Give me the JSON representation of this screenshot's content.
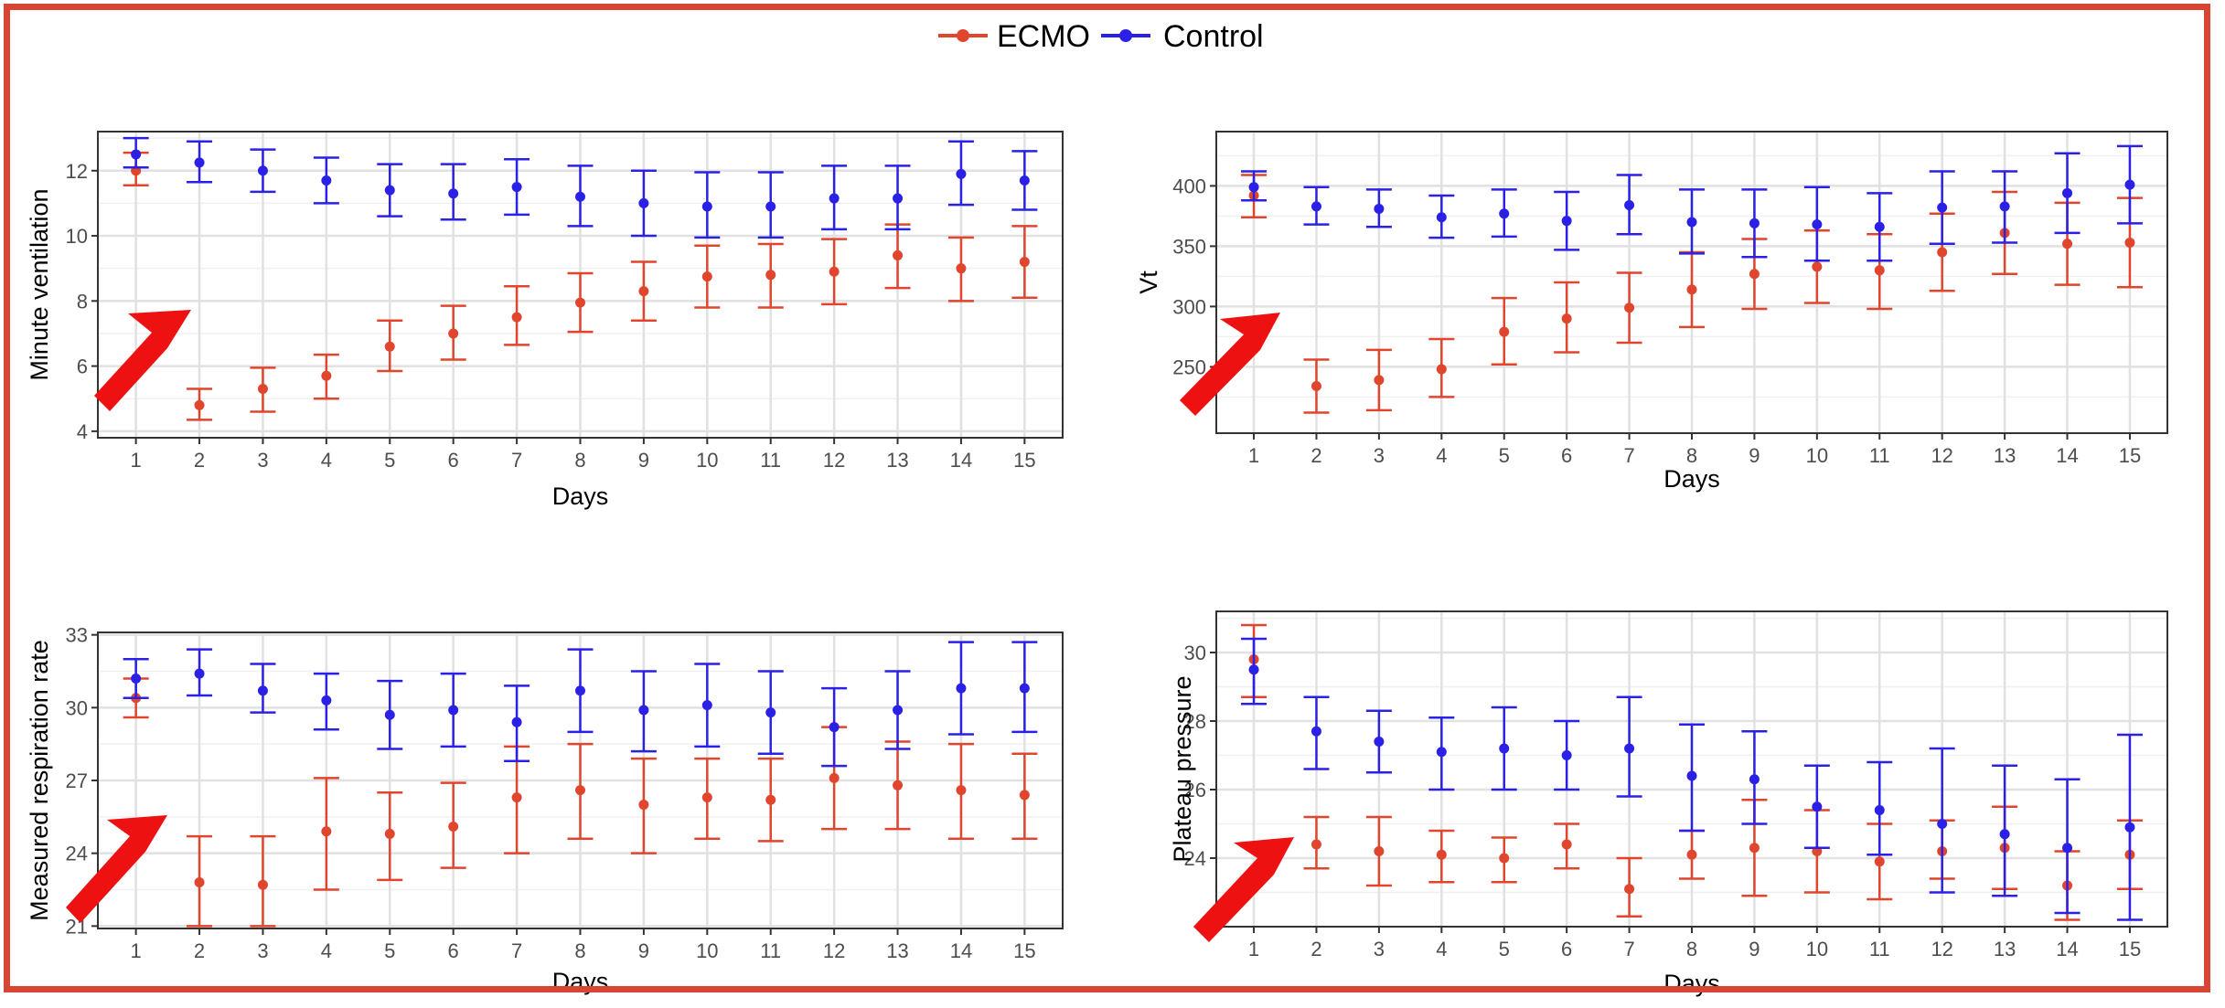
{
  "legend": {
    "position": "top-center",
    "items": [
      {
        "name": "ECMO",
        "color": "#e0452e"
      },
      {
        "name": "Control",
        "color": "#2b21e6"
      }
    ]
  },
  "colors": {
    "ecmo": "#e0452e",
    "control": "#2b21e6",
    "arrow": "#ee1111",
    "frame": "#d94535"
  },
  "chart_data": [
    {
      "type": "scatter",
      "title": "",
      "xlabel": "Days",
      "ylabel": "Minute ventilation",
      "x": [
        1,
        2,
        3,
        4,
        5,
        6,
        7,
        8,
        9,
        10,
        11,
        12,
        13,
        14,
        15
      ],
      "xlim": [
        0.4,
        15.6
      ],
      "ylim": [
        3.8,
        13.2
      ],
      "yticks": [
        4,
        6,
        8,
        10,
        12
      ],
      "grid": true,
      "series": [
        {
          "name": "ECMO",
          "values": [
            12.0,
            4.8,
            5.3,
            5.7,
            6.6,
            7.0,
            7.5,
            7.95,
            8.3,
            8.75,
            8.8,
            8.9,
            9.4,
            9.0,
            9.2
          ],
          "lower": [
            11.55,
            4.35,
            4.6,
            5.0,
            5.85,
            6.2,
            6.65,
            7.05,
            7.4,
            7.8,
            7.8,
            7.9,
            8.4,
            8.0,
            8.1
          ],
          "upper": [
            12.55,
            5.3,
            5.95,
            6.35,
            7.4,
            7.85,
            8.45,
            8.85,
            9.2,
            9.7,
            9.75,
            9.9,
            10.35,
            9.95,
            10.3
          ]
        },
        {
          "name": "Control",
          "values": [
            12.5,
            12.25,
            12.0,
            11.7,
            11.4,
            11.3,
            11.5,
            11.2,
            11.0,
            10.9,
            10.9,
            11.15,
            11.15,
            11.9,
            11.7
          ],
          "lower": [
            12.1,
            11.65,
            11.35,
            11.0,
            10.6,
            10.5,
            10.65,
            10.3,
            10.0,
            9.95,
            9.95,
            10.2,
            10.2,
            10.95,
            10.8
          ],
          "upper": [
            13.0,
            12.9,
            12.65,
            12.4,
            12.2,
            12.2,
            12.35,
            12.15,
            12.0,
            11.95,
            11.95,
            12.15,
            12.15,
            12.9,
            12.6
          ]
        }
      ]
    },
    {
      "type": "scatter",
      "title": "",
      "xlabel": "Days",
      "ylabel": "Vt",
      "x": [
        1,
        2,
        3,
        4,
        5,
        6,
        7,
        8,
        9,
        10,
        11,
        12,
        13,
        14,
        15
      ],
      "xlim": [
        0.4,
        15.6
      ],
      "ylim": [
        195,
        445
      ],
      "yticks": [
        250,
        300,
        350,
        400
      ],
      "grid": true,
      "series": [
        {
          "name": "ECMO",
          "values": [
            392,
            234,
            239,
            248,
            279,
            290,
            299,
            314,
            327,
            333,
            330,
            345,
            361,
            352,
            353
          ],
          "lower": [
            374,
            212,
            214,
            225,
            252,
            262,
            270,
            283,
            298,
            303,
            298,
            313,
            327,
            318,
            316
          ],
          "upper": [
            409,
            256,
            264,
            273,
            307,
            320,
            328,
            345,
            356,
            363,
            360,
            377,
            395,
            386,
            390
          ]
        },
        {
          "name": "Control",
          "values": [
            399,
            383,
            381,
            374,
            377,
            371,
            384,
            370,
            369,
            368,
            366,
            382,
            383,
            394,
            401
          ],
          "lower": [
            388,
            368,
            366,
            357,
            358,
            347,
            360,
            344,
            341,
            338,
            338,
            352,
            353,
            361,
            369
          ],
          "upper": [
            412,
            399,
            397,
            392,
            397,
            395,
            409,
            397,
            397,
            399,
            394,
            412,
            412,
            427,
            433
          ]
        }
      ]
    },
    {
      "type": "scatter",
      "title": "",
      "xlabel": "Days",
      "ylabel": "Measured respiration rate",
      "x": [
        1,
        2,
        3,
        4,
        5,
        6,
        7,
        8,
        9,
        10,
        11,
        12,
        13,
        14,
        15
      ],
      "xlim": [
        0.4,
        15.6
      ],
      "ylim": [
        20.9,
        33.1
      ],
      "yticks": [
        21,
        24,
        27,
        30,
        33
      ],
      "ytick_labels": [
        "21",
        "24",
        "27",
        "30",
        "33"
      ],
      "grid": true,
      "series": [
        {
          "name": "ECMO",
          "values": [
            30.4,
            22.8,
            22.7,
            24.9,
            24.8,
            25.1,
            26.3,
            26.6,
            26.0,
            26.3,
            26.2,
            27.1,
            26.8,
            26.6,
            26.4
          ],
          "lower": [
            29.6,
            21.0,
            21.0,
            22.5,
            22.9,
            23.4,
            24.0,
            24.6,
            24.0,
            24.6,
            24.5,
            25.0,
            25.0,
            24.6,
            24.6
          ],
          "upper": [
            31.2,
            24.7,
            24.7,
            27.1,
            26.5,
            26.9,
            28.4,
            28.5,
            27.9,
            27.9,
            27.9,
            29.2,
            28.6,
            28.5,
            28.1
          ]
        },
        {
          "name": "Control",
          "values": [
            31.2,
            31.4,
            30.7,
            30.3,
            29.7,
            29.9,
            29.4,
            30.7,
            29.9,
            30.1,
            29.8,
            29.2,
            29.9,
            30.8,
            30.8
          ],
          "lower": [
            30.4,
            30.5,
            29.8,
            29.1,
            28.3,
            28.4,
            27.8,
            29.0,
            28.2,
            28.4,
            28.1,
            27.6,
            28.3,
            28.9,
            29.0
          ],
          "upper": [
            32.0,
            32.4,
            31.8,
            31.4,
            31.1,
            31.4,
            30.9,
            32.4,
            31.5,
            31.8,
            31.5,
            30.8,
            31.5,
            32.7,
            32.7
          ]
        }
      ]
    },
    {
      "type": "scatter",
      "title": "",
      "xlabel": "Days",
      "ylabel": "Plateau pressure",
      "x": [
        1,
        2,
        3,
        4,
        5,
        6,
        7,
        8,
        9,
        10,
        11,
        12,
        13,
        14,
        15
      ],
      "xlim": [
        0.4,
        15.6
      ],
      "ylim": [
        22.0,
        31.2
      ],
      "yticks": [
        24,
        26,
        28,
        30
      ],
      "grid": true,
      "series": [
        {
          "name": "ECMO",
          "values": [
            29.8,
            24.4,
            24.2,
            24.1,
            24.0,
            24.4,
            23.1,
            24.1,
            24.3,
            24.2,
            23.9,
            24.2,
            24.3,
            23.2,
            24.1
          ],
          "lower": [
            28.7,
            23.7,
            23.2,
            23.3,
            23.3,
            23.7,
            22.3,
            23.4,
            22.9,
            23.0,
            22.8,
            23.4,
            23.1,
            22.2,
            23.1
          ],
          "upper": [
            30.8,
            25.2,
            25.2,
            24.8,
            24.6,
            25.0,
            24.0,
            24.8,
            25.7,
            25.4,
            25.0,
            25.1,
            25.5,
            24.2,
            25.1
          ]
        },
        {
          "name": "Control",
          "values": [
            29.5,
            27.7,
            27.4,
            27.1,
            27.2,
            27.0,
            27.2,
            26.4,
            26.3,
            25.5,
            25.4,
            25.0,
            24.7,
            24.3,
            24.9
          ],
          "lower": [
            28.5,
            26.6,
            26.5,
            26.0,
            26.0,
            26.0,
            25.8,
            24.8,
            25.0,
            24.3,
            24.1,
            23.0,
            22.9,
            22.4,
            22.2
          ],
          "upper": [
            30.4,
            28.7,
            28.3,
            28.1,
            28.4,
            28.0,
            28.7,
            27.9,
            27.7,
            26.7,
            26.8,
            27.2,
            26.7,
            26.3,
            27.6
          ]
        }
      ]
    }
  ]
}
